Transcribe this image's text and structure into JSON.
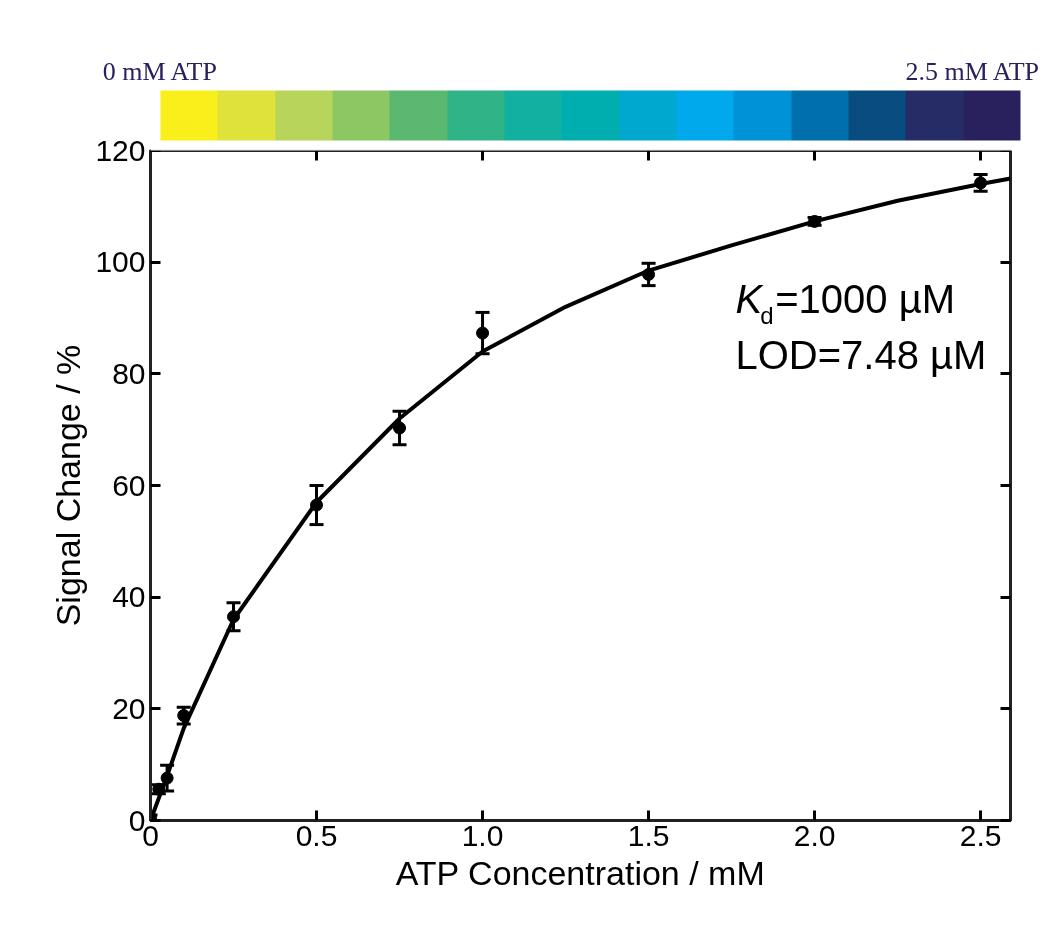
{
  "chart_data": {
    "type": "scatter",
    "xlabel": "ATP Concentration / mM",
    "ylabel": "Signal Change / %",
    "annotations": [
      "K$_{d}$=1000 µM",
      "LOD=7.48 µM"
    ],
    "clim": [
      0,
      2.5
    ],
    "cticks": [
      {
        "value": 0,
        "label": "0 mM ATP"
      },
      {
        "value": 2.5,
        "label": "2.5 mM ATP"
      }
    ],
    "x": [
      0,
      0.025,
      0.05,
      0.1,
      0.25,
      0.5,
      0.75,
      1.0,
      1.5,
      2.0,
      2.5
    ],
    "series": [
      {
        "color": "#000000",
        "marker": "circle",
        "values": [
          0.5,
          5.6,
          7.6,
          18.8,
          36.5,
          56.5,
          70.3,
          87.3,
          97.8,
          107.3,
          114.2
        ],
        "errors": [
          0.5,
          0.8,
          2.3,
          1.5,
          2.5,
          3.5,
          3.0,
          3.7,
          2.0,
          0.7,
          1.5
        ]
      },
      {
        "type": "line",
        "color": "#000000",
        "x": [
          0,
          0.05,
          0.1,
          0.25,
          0.5,
          0.75,
          1.0,
          1.25,
          1.5,
          1.75,
          2.0,
          2.25,
          2.5,
          2.59
        ],
        "values": [
          0,
          8,
          16.5,
          36,
          57,
          72,
          84,
          92,
          98.5,
          103,
          107.3,
          111,
          114,
          115
        ]
      }
    ],
    "xlim": [
      0,
      2.59
    ],
    "ylim": [
      0,
      120
    ],
    "xticks": [
      0,
      0.5,
      {
        "value": 1.0,
        "label": "1.0"
      },
      1.5,
      {
        "value": 2.0,
        "label": "2.0"
      },
      2.5
    ],
    "yticks": [
      0,
      20,
      40,
      60,
      80,
      100,
      120
    ],
    "grid": false
  }
}
